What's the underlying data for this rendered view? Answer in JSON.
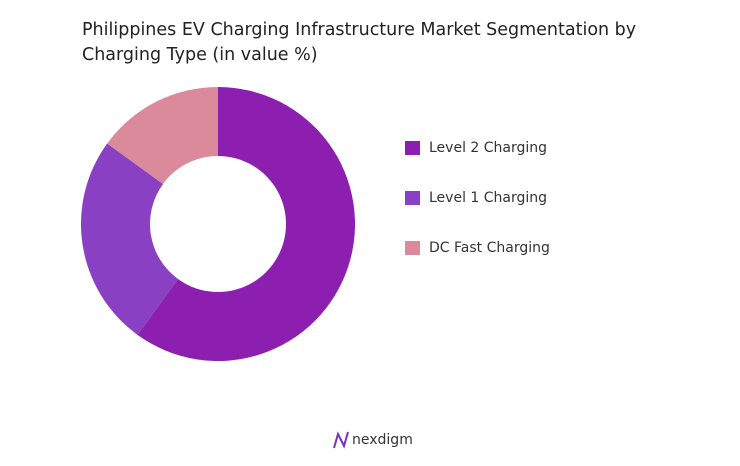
{
  "chart_data": {
    "type": "donut",
    "title": "Philippines EV Charging Infrastructure Market Segmentation by Charging Type (in value %)",
    "categories": [
      "Level 2 Charging",
      "Level 1 Charging",
      "DC Fast Charging"
    ],
    "values": [
      60,
      25,
      15
    ],
    "colors": [
      "#8c1fb0",
      "#8a40c2",
      "#db8a9b"
    ],
    "legend": "right"
  },
  "brand": "nexdigm"
}
